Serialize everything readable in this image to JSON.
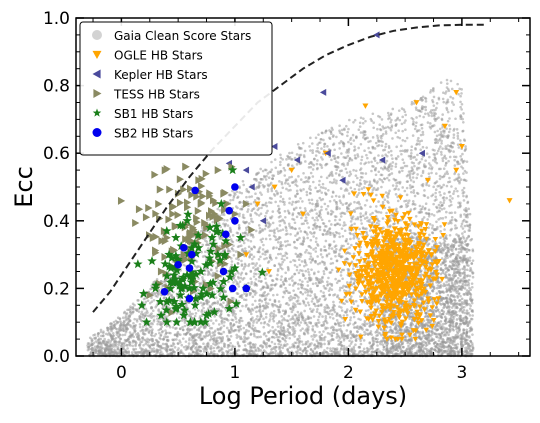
{
  "chart_data": {
    "type": "scatter",
    "title": "",
    "xlabel": "Log Period (days)",
    "ylabel": "Ecc",
    "xlim": [
      -0.4,
      3.6
    ],
    "ylim": [
      0.0,
      1.0
    ],
    "xticks": [
      {
        "value": 0,
        "label": "0"
      },
      {
        "value": 1,
        "label": "1"
      },
      {
        "value": 2,
        "label": "2"
      },
      {
        "value": 3,
        "label": "3"
      }
    ],
    "yticks": [
      {
        "value": 0.0,
        "label": "0.0"
      },
      {
        "value": 0.2,
        "label": "0.2"
      },
      {
        "value": 0.4,
        "label": "0.4"
      },
      {
        "value": 0.6,
        "label": "0.6"
      },
      {
        "value": 0.8,
        "label": "0.8"
      },
      {
        "value": 1.0,
        "label": "1.0"
      }
    ],
    "grid": false,
    "legend_position": "top-left",
    "envelope_curve": {
      "style": "dashed",
      "color": "#222222",
      "x": [
        -0.25,
        -0.1,
        0.0,
        0.2,
        0.4,
        0.6,
        0.8,
        1.0,
        1.2,
        1.4,
        1.6,
        1.8,
        2.0,
        2.2,
        2.4,
        2.6,
        2.8,
        3.0,
        3.2
      ],
      "y": [
        0.13,
        0.19,
        0.24,
        0.34,
        0.44,
        0.53,
        0.61,
        0.68,
        0.75,
        0.8,
        0.85,
        0.89,
        0.92,
        0.945,
        0.962,
        0.972,
        0.978,
        0.98,
        0.98
      ]
    },
    "series": [
      {
        "name": "Gaia Clean Score Stars",
        "marker": "circle",
        "color": "#9a9a9a",
        "density_regions": [
          {
            "x_range": [
              -0.3,
              3.1
            ],
            "ecc_upper_at_x": [
              [
                -0.3,
                0.05
              ],
              [
                0.0,
                0.12
              ],
              [
                0.5,
                0.3
              ],
              [
                1.0,
                0.5
              ],
              [
                1.5,
                0.62
              ],
              [
                2.0,
                0.7
              ],
              [
                2.5,
                0.74
              ],
              [
                2.9,
                0.83
              ],
              [
                3.0,
                0.8
              ],
              [
                3.1,
                0.3
              ]
            ]
          }
        ]
      },
      {
        "name": "OGLE HB Stars",
        "marker": "triangle-down",
        "color": "#ffa500",
        "cluster_center": [
          2.4,
          0.25
        ],
        "points": [
          [
            3.42,
            0.46
          ],
          [
            2.95,
            0.78
          ],
          [
            2.6,
            0.75
          ],
          [
            2.15,
            0.74
          ],
          [
            1.35,
            0.5
          ],
          [
            1.5,
            0.55
          ],
          [
            2.7,
            0.52
          ],
          [
            3.0,
            0.62
          ],
          [
            1.8,
            0.6
          ],
          [
            2.05,
            0.48
          ],
          [
            1.6,
            0.42
          ],
          [
            1.2,
            0.45
          ],
          [
            2.85,
            0.68
          ],
          [
            1.1,
            0.3
          ],
          [
            1.3,
            0.25
          ],
          [
            2.95,
            0.55
          ]
        ]
      },
      {
        "name": "Kepler HB Stars",
        "marker": "triangle-left",
        "color": "#4a4a9c",
        "points": [
          [
            2.25,
            0.95
          ],
          [
            1.78,
            0.78
          ],
          [
            1.82,
            0.6
          ],
          [
            1.55,
            0.58
          ],
          [
            1.35,
            0.62
          ],
          [
            1.1,
            0.55
          ],
          [
            2.65,
            0.6
          ],
          [
            1.25,
            0.4
          ],
          [
            1.15,
            0.5
          ],
          [
            0.95,
            0.57
          ],
          [
            2.3,
            0.58
          ],
          [
            1.95,
            0.52
          ]
        ]
      },
      {
        "name": "TESS HB Stars",
        "marker": "triangle-right",
        "color": "#8a8a62",
        "cluster_center": [
          0.6,
          0.38
        ],
        "points": [
          [
            0.25,
            0.18
          ],
          [
            0.35,
            0.25
          ],
          [
            0.45,
            0.42
          ],
          [
            0.5,
            0.48
          ],
          [
            0.6,
            0.36
          ],
          [
            0.7,
            0.45
          ],
          [
            0.8,
            0.28
          ],
          [
            0.9,
            0.48
          ],
          [
            1.0,
            0.42
          ],
          [
            1.05,
            0.3
          ],
          [
            0.65,
            0.22
          ],
          [
            0.55,
            0.3
          ],
          [
            0.75,
            0.38
          ],
          [
            0.85,
            0.55
          ],
          [
            1.1,
            0.45
          ],
          [
            0.4,
            0.35
          ],
          [
            0.95,
            0.33
          ],
          [
            0.68,
            0.52
          ],
          [
            0.58,
            0.44
          ],
          [
            0.82,
            0.42
          ]
        ]
      },
      {
        "name": "SB1 HB Stars",
        "marker": "star",
        "color": "#1a7f1a",
        "cluster_center": [
          0.6,
          0.22
        ],
        "points": [
          [
            0.35,
            0.12
          ],
          [
            0.4,
            0.16
          ],
          [
            0.45,
            0.22
          ],
          [
            0.5,
            0.28
          ],
          [
            0.55,
            0.12
          ],
          [
            0.6,
            0.2
          ],
          [
            0.65,
            0.15
          ],
          [
            0.7,
            0.25
          ],
          [
            0.75,
            0.12
          ],
          [
            0.8,
            0.18
          ],
          [
            0.85,
            0.3
          ],
          [
            0.9,
            0.22
          ],
          [
            0.95,
            0.14
          ],
          [
            1.0,
            0.26
          ],
          [
            0.48,
            0.35
          ],
          [
            0.58,
            0.4
          ],
          [
            0.68,
            0.32
          ],
          [
            0.78,
            0.38
          ],
          [
            0.88,
            0.45
          ],
          [
            0.98,
            0.55
          ],
          [
            1.05,
            0.35
          ],
          [
            0.62,
            0.28
          ],
          [
            0.72,
            0.2
          ],
          [
            0.52,
            0.18
          ],
          [
            0.42,
            0.3
          ],
          [
            0.82,
            0.13
          ],
          [
            0.92,
            0.34
          ],
          [
            0.3,
            0.2
          ],
          [
            0.18,
            0.15
          ],
          [
            1.1,
            0.2
          ]
        ]
      },
      {
        "name": "SB2 HB Stars",
        "marker": "circle",
        "color": "#0000ee",
        "points": [
          [
            0.65,
            0.49
          ],
          [
            1.0,
            0.5
          ],
          [
            0.95,
            0.43
          ],
          [
            0.92,
            0.36
          ],
          [
            0.55,
            0.32
          ],
          [
            0.6,
            0.26
          ],
          [
            1.0,
            0.4
          ],
          [
            0.9,
            0.25
          ],
          [
            0.5,
            0.27
          ],
          [
            0.38,
            0.19
          ],
          [
            0.6,
            0.17
          ],
          [
            0.98,
            0.2
          ],
          [
            1.1,
            0.2
          ],
          [
            0.62,
            0.3
          ]
        ]
      }
    ]
  }
}
